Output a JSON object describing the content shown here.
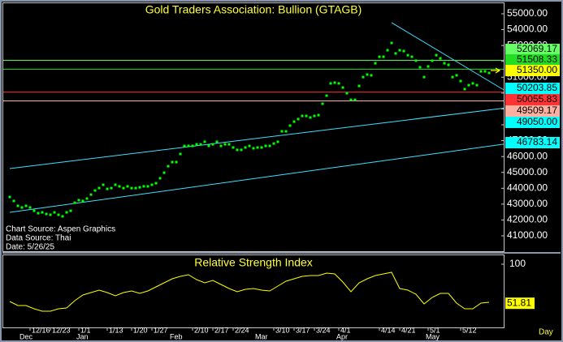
{
  "chart_data": [
    {
      "type": "dot",
      "title": "Gold Traders Association: Bullion (GTAGB)",
      "categories": [
        null,
        null,
        null,
        null,
        null,
        "12/16",
        null,
        null,
        null,
        null,
        "12/23",
        null,
        null,
        null,
        null,
        null,
        null,
        "1/1",
        null,
        null,
        null,
        null,
        null,
        null,
        "1/13",
        null,
        null,
        null,
        null,
        null,
        "1/20",
        null,
        null,
        null,
        null,
        "1/27",
        null,
        null,
        null,
        null,
        null,
        null,
        null,
        null,
        null,
        "2/10",
        null,
        null,
        null,
        null,
        "2/17",
        null,
        null,
        null,
        null,
        "2/24",
        null,
        null,
        null,
        null,
        null,
        null,
        null,
        null,
        null,
        "3/10",
        null,
        null,
        null,
        null,
        "3/17",
        null,
        null,
        null,
        null,
        "3/24",
        null,
        null,
        null,
        null,
        null,
        "4/1",
        null,
        null,
        null,
        null,
        null,
        null,
        null,
        null,
        null,
        "4/14",
        null,
        null,
        null,
        null,
        "4/21",
        null,
        null,
        null,
        null,
        null,
        null,
        "5/1",
        null,
        null,
        null,
        null,
        null,
        null,
        null,
        "5/12",
        null,
        null,
        null,
        null,
        null,
        null,
        null
      ],
      "months": [
        null,
        null,
        "Dec",
        null,
        null,
        null,
        null,
        null,
        null,
        null,
        null,
        null,
        null,
        null,
        null,
        null,
        "Jan",
        null,
        null,
        null,
        null,
        null,
        null,
        null,
        null,
        null,
        null,
        null,
        null,
        null,
        null,
        null,
        null,
        null,
        null,
        null,
        null,
        null,
        null,
        "Feb",
        null,
        null,
        null,
        null,
        null,
        null,
        null,
        null,
        null,
        null,
        null,
        null,
        null,
        null,
        null,
        null,
        null,
        null,
        null,
        null,
        "Mar",
        null,
        null,
        null,
        null,
        null,
        null,
        null,
        null,
        null,
        null,
        null,
        null,
        null,
        null,
        null,
        null,
        null,
        null,
        null,
        "Apr",
        null,
        null,
        null,
        null,
        null,
        null,
        null,
        null,
        null,
        null,
        null,
        null,
        null,
        null,
        null,
        null,
        null,
        null,
        null,
        null,
        null,
        "May",
        null,
        null,
        null,
        null,
        null,
        null,
        null,
        null,
        null,
        null,
        null,
        null,
        null,
        null,
        null,
        null
      ],
      "values": [
        43450,
        43200,
        42890,
        42790,
        42890,
        42790,
        42580,
        42430,
        42480,
        42380,
        42330,
        42480,
        42330,
        42230,
        42480,
        42580,
        43090,
        43250,
        43200,
        43350,
        43600,
        43860,
        44010,
        44220,
        43960,
        44010,
        44220,
        44120,
        44010,
        44120,
        44010,
        44010,
        44060,
        44120,
        44120,
        44220,
        44320,
        44630,
        44980,
        45390,
        45650,
        45650,
        46160,
        46670,
        46670,
        46670,
        46770,
        46770,
        46930,
        46670,
        46770,
        46930,
        46670,
        46770,
        46770,
        46570,
        46420,
        46420,
        46570,
        46670,
        46520,
        46570,
        46570,
        46670,
        46670,
        46820,
        46930,
        47590,
        47590,
        47950,
        48200,
        48360,
        48560,
        48560,
        48460,
        48560,
        48610,
        49330,
        49840,
        50610,
        50660,
        50610,
        50350,
        49990,
        49580,
        49580,
        50450,
        51010,
        51170,
        51120,
        51880,
        52290,
        52290,
        52700,
        53160,
        52500,
        52700,
        52650,
        52390,
        52290,
        52040,
        51630,
        51010,
        51680,
        52040,
        52390,
        52190,
        51880,
        51780,
        51010,
        51120,
        50760,
        50250,
        50500,
        50610,
        50500,
        51370,
        51370,
        51270
      ],
      "color": "#00ff00",
      "ylim": [
        40030,
        55715
      ],
      "yticks": [
        {
          "value": 41000,
          "label": "41000.00"
        },
        {
          "value": 42000,
          "label": "42000.00"
        },
        {
          "value": 43000,
          "label": "43000.00"
        },
        {
          "value": 44000,
          "label": "44000.00"
        },
        {
          "value": 45000,
          "label": "45000.00"
        },
        {
          "value": 46000,
          "label": "46000.00"
        },
        {
          "value": 47000,
          "label": "47000.00"
        },
        {
          "value": 48000,
          "label": "48000.00"
        },
        {
          "value": 49000,
          "label": "49000.00"
        },
        {
          "value": 50000,
          "label": "50000.00"
        },
        {
          "value": 51000,
          "label": "51000.00"
        },
        {
          "value": 52000,
          "label": "52000.00"
        },
        {
          "value": 53000,
          "label": "53000.00"
        },
        {
          "value": 54000,
          "label": "54000.00"
        },
        {
          "value": 55000,
          "label": "55000.00"
        }
      ],
      "levels": [
        {
          "label": "52069.17",
          "value": 52069.17,
          "color": "#66ff66",
          "line": true
        },
        {
          "label": "51508.33",
          "value": 51508.33,
          "color": "#22dd22",
          "line": true
        },
        {
          "label": "51350.00",
          "value": 51350,
          "color": "#ffff00",
          "line": false
        },
        {
          "label": "50203.85",
          "value": 50203.85,
          "color": "#00ffff",
          "line": false,
          "trend_from": {
            "x": 94,
            "y": 54440
          }
        },
        {
          "label": "50055.83",
          "value": 50055.83,
          "color": "#ff3333",
          "line": true
        },
        {
          "label": "49509.17",
          "value": 49509.17,
          "color": "#ffb0a0",
          "line": true
        },
        {
          "label": "49050.00",
          "value": 49050,
          "color": "#00ffff",
          "line": false,
          "trend_from": {
            "x": 0,
            "y": 45240
          }
        },
        {
          "label": "46783.14",
          "value": 46783.14,
          "color": "#00ffff",
          "line": false,
          "trend_from": {
            "x": 0,
            "y": 42480
          }
        }
      ],
      "notes": [
        "Chart Source: Aspen Graphics",
        "Data Source: Thai",
        "Date: 5/26/25"
      ]
    },
    {
      "type": "line",
      "title": "Relative Strength Index",
      "values": [
        54,
        49,
        49,
        45,
        42,
        42,
        45,
        46,
        55,
        62,
        65,
        68,
        65,
        61,
        65,
        67,
        64,
        67,
        72,
        77,
        82,
        85,
        87,
        81,
        77,
        80,
        75,
        70,
        66,
        69,
        70,
        68,
        67,
        73,
        79,
        82,
        85,
        86,
        86,
        89,
        88,
        78,
        66,
        77,
        82,
        86,
        88,
        90,
        70,
        68,
        63,
        51,
        59,
        64,
        64,
        52,
        45,
        45,
        52,
        53
      ],
      "color": "#ffff00",
      "ylim": [
        22,
        112
      ],
      "yticks": [
        100
      ],
      "last_value": 51.81,
      "x_label": "Day"
    }
  ]
}
